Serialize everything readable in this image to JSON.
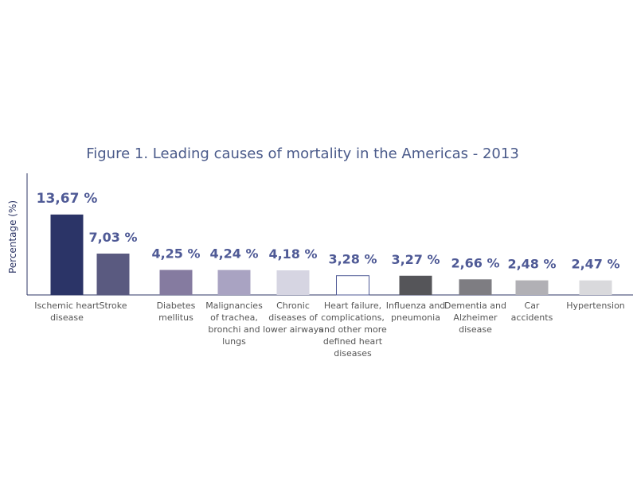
{
  "chart_data": {
    "type": "bar",
    "title": "Figure 1. Leading causes of mortality in the Americas - 2013",
    "ylabel": "Percentage (%)",
    "xlabel": "",
    "categories": [
      [
        "Ischemic heart",
        "disease"
      ],
      [
        "Stroke"
      ],
      [
        "Diabetes",
        "mellitus"
      ],
      [
        "Malignancies",
        "of trachea,",
        "bronchi and",
        "lungs"
      ],
      [
        "Chronic",
        "diseases of",
        "lower airways"
      ],
      [
        "Heart failure,",
        "complications,",
        "and other more",
        "defined heart",
        "diseases"
      ],
      [
        "Influenza and",
        "pneumonia"
      ],
      [
        "Dementia and",
        "Alzheimer",
        "disease"
      ],
      [
        "Car",
        "accidents"
      ],
      [
        "Hypertension"
      ]
    ],
    "values": [
      13.67,
      7.03,
      4.25,
      4.24,
      4.18,
      3.28,
      3.27,
      2.66,
      2.48,
      2.47
    ],
    "value_labels": [
      "13,67 %",
      "7,03 %",
      "4,25 %",
      "4,24 %",
      "4,18 %",
      "3,28 %",
      "3,27 %",
      "2,66 %",
      "2,48 %",
      "2,47 %"
    ],
    "bar_colors": [
      "#2b3467",
      "#5a5a80",
      "#857ba0",
      "#a9a3c2",
      "#d6d5e2",
      "#ffffff",
      "#555559",
      "#7e7d82",
      "#b1b0b5",
      "#d9d9dc"
    ],
    "ylim": [
      0,
      14
    ],
    "grid": false,
    "legend": "none"
  }
}
